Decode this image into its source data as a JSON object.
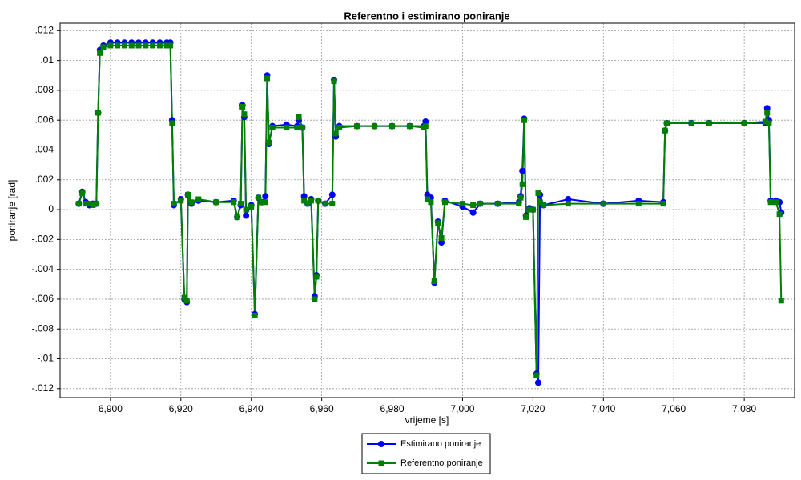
{
  "chart_data": {
    "type": "line",
    "title": "Referentno i estimirano poniranje",
    "x_label": "vrijeme [s]",
    "y_label": "poniranje [rad]",
    "grid": true,
    "legend": "bottom",
    "xlim": [
      6885.7,
      7094.3
    ],
    "ylim": [
      -0.0126,
      0.0125
    ],
    "xticks": [
      {
        "value": 6900,
        "label": "6,900"
      },
      {
        "value": 6920,
        "label": "6,920"
      },
      {
        "value": 6940,
        "label": "6,940"
      },
      {
        "value": 6960,
        "label": "6,960"
      },
      {
        "value": 6980,
        "label": "6,980"
      },
      {
        "value": 7000,
        "label": "7,000"
      },
      {
        "value": 7020,
        "label": "7,020"
      },
      {
        "value": 7040,
        "label": "7,040"
      },
      {
        "value": 7060,
        "label": "7,060"
      },
      {
        "value": 7080,
        "label": "7,080"
      }
    ],
    "yticks": [
      {
        "value": -0.012,
        "label": "-.012"
      },
      {
        "value": -0.01,
        "label": "-.01"
      },
      {
        "value": -0.008,
        "label": "-.008"
      },
      {
        "value": -0.006,
        "label": "-.006"
      },
      {
        "value": -0.004,
        "label": "-.004"
      },
      {
        "value": -0.002,
        "label": "-.002"
      },
      0,
      {
        "value": 0.002,
        "label": ".002"
      },
      {
        "value": 0.004,
        "label": ".004"
      },
      {
        "value": 0.006,
        "label": ".006"
      },
      {
        "value": 0.008,
        "label": ".008"
      },
      {
        "value": 0.01,
        "label": ".01"
      },
      {
        "value": 0.012,
        "label": ".012"
      }
    ],
    "x": [
      6891,
      6892,
      6893,
      6894,
      6895,
      6896,
      6896.5,
      6897,
      6898,
      6900,
      6902,
      6904,
      6906,
      6908,
      6910,
      6912,
      6914,
      6916,
      6917,
      6917.5,
      6918,
      6920,
      6921,
      6921.7,
      6922,
      6923,
      6925,
      6930,
      6935,
      6936,
      6937,
      6937.5,
      6938,
      6938.5,
      6940,
      6941,
      6942,
      6943,
      6944,
      6944.5,
      6945,
      6946,
      6950,
      6953,
      6953.5,
      6954.5,
      6955,
      6956,
      6957,
      6958,
      6958.5,
      6959,
      6961,
      6963,
      6963.5,
      6964,
      6965,
      6970,
      6975,
      6980,
      6985,
      6989,
      6989.5,
      6990,
      6991,
      6992,
      6993,
      6994,
      6995,
      7000,
      7003,
      7005,
      7010,
      7016,
      7016.5,
      7017,
      7017.5,
      7018,
      7019,
      7020,
      7021,
      7021.5,
      7022,
      7023,
      7030,
      7040,
      7050,
      7057,
      7057.5,
      7058,
      7065,
      7070,
      7080,
      7086,
      7086.5,
      7087,
      7087.5,
      7089,
      7090,
      7090.5
    ],
    "series": [
      {
        "name": "Estimirano poniranje",
        "color": "#0000ff",
        "marker": "circle",
        "values": [
          0.0004,
          0.0012,
          0.0005,
          0.0003,
          0.0004,
          0.0004,
          0.0065,
          0.0107,
          0.011,
          0.0112,
          0.0112,
          0.0112,
          0.0112,
          0.0112,
          0.0112,
          0.0112,
          0.0112,
          0.0112,
          0.0112,
          0.006,
          0.0003,
          0.0007,
          -0.006,
          -0.0062,
          0.001,
          0.0004,
          0.0006,
          0.0005,
          0.0006,
          -0.0005,
          0.0003,
          0.007,
          0.0062,
          -0.0004,
          0.0003,
          -0.007,
          0.0008,
          0.0005,
          0.0009,
          0.009,
          0.0044,
          0.0056,
          0.0057,
          0.0056,
          0.006,
          0.0055,
          0.0009,
          0.0004,
          0.0007,
          -0.0058,
          -0.0044,
          0.0006,
          0.0004,
          0.001,
          0.0087,
          0.0049,
          0.0056,
          0.0056,
          0.0056,
          0.0056,
          0.0056,
          0.0056,
          0.0059,
          0.001,
          0.0008,
          -0.0049,
          -0.0008,
          -0.0022,
          0.0006,
          0.0002,
          -0.0002,
          0.0004,
          0.0004,
          0.0005,
          0.0009,
          0.0026,
          0.0061,
          -0.0004,
          0.0001,
          0,
          -0.011,
          -0.0116,
          0.001,
          0.0003,
          0.0007,
          0.0004,
          0.0006,
          0.0005,
          0.0053,
          0.0058,
          0.0058,
          0.0058,
          0.0058,
          0.0058,
          0.0068,
          0.006,
          0.0006,
          0.0006,
          0.0005,
          -0.0002
        ]
      },
      {
        "name": "Referentno poniranje",
        "color": "#008000",
        "marker": "square",
        "values": [
          0.0004,
          0.0011,
          0.0004,
          0.0004,
          0.0003,
          0.0004,
          0.0065,
          0.0105,
          0.0109,
          0.011,
          0.011,
          0.011,
          0.011,
          0.011,
          0.011,
          0.011,
          0.011,
          0.011,
          0.011,
          0.0058,
          0.0004,
          0.0006,
          -0.0059,
          -0.0061,
          0.001,
          0.0005,
          0.0007,
          0.0005,
          0.0005,
          -0.0005,
          0.0004,
          0.0069,
          0.0064,
          0,
          0.0002,
          -0.0071,
          0.0008,
          0.0005,
          0.0005,
          0.0088,
          0.0045,
          0.0055,
          0.0055,
          0.0055,
          0.0062,
          0.0055,
          0.0006,
          0.0004,
          0.0006,
          -0.006,
          -0.0045,
          0.0006,
          0.0004,
          0.0004,
          0.0086,
          0.0051,
          0.0055,
          0.0056,
          0.0056,
          0.0056,
          0.0056,
          0.0055,
          0.0056,
          0.0007,
          0.0005,
          -0.0048,
          -0.0009,
          -0.0019,
          0.0005,
          0.0004,
          0.0003,
          0.0004,
          0.0004,
          0.0004,
          0.0008,
          0.0017,
          0.006,
          -0.0005,
          0,
          0,
          -0.0111,
          0.0011,
          0.0005,
          0.0003,
          0.0004,
          0.0004,
          0.0004,
          0.0004,
          0.0053,
          0.0058,
          0.0058,
          0.0058,
          0.0058,
          0.0059,
          0.0065,
          0.0058,
          0.0005,
          0.0005,
          -0.0003,
          -0.0061
        ]
      }
    ]
  }
}
